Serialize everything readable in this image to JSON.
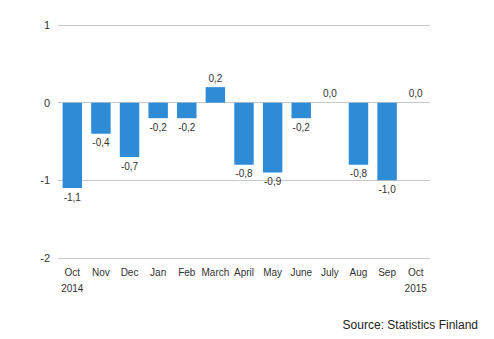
{
  "chart_data": {
    "type": "bar",
    "categories": [
      "Oct\n2014",
      "Nov",
      "Dec",
      "Jan",
      "Feb",
      "March",
      "April",
      "May",
      "June",
      "July",
      "Aug",
      "Sep",
      "Oct\n2015"
    ],
    "values": [
      -1.1,
      -0.4,
      -0.7,
      -0.2,
      -0.2,
      0.2,
      -0.8,
      -0.9,
      -0.2,
      0.0,
      -0.8,
      -1.0,
      0.0
    ],
    "value_labels": [
      "-1,1",
      "-0,4",
      "-0,7",
      "-0,2",
      "-0,2",
      "0,2",
      "-0,8",
      "-0,9",
      "-0,2",
      "0,0",
      "-0,8",
      "-1,0",
      "0,0"
    ],
    "color": "#2e8bd6",
    "ylim": [
      -2,
      1
    ],
    "yticks": [
      -2,
      -1,
      0,
      1
    ],
    "grid": true,
    "data_labels": true,
    "annotations": [
      "Source: Statistics Finland"
    ]
  }
}
